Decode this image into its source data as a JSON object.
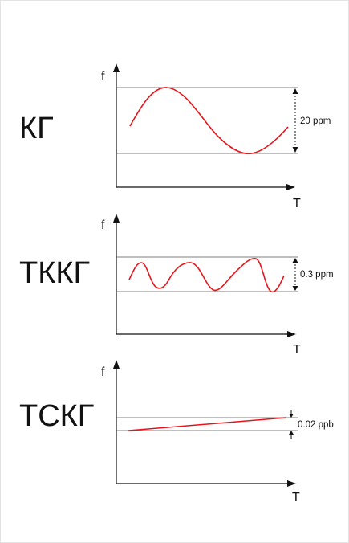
{
  "panels": [
    {
      "label": "КГ",
      "y_axis_label": "f",
      "x_axis_label": "T",
      "range_label": "20 ppm",
      "curve": "sine",
      "colors": {
        "curve": "#e8141b",
        "axis": "#111111",
        "ref": "#555555"
      }
    },
    {
      "label": "ТККГ",
      "y_axis_label": "f",
      "x_axis_label": "T",
      "range_label": "0.3 ppm",
      "curve": "wavy",
      "colors": {
        "curve": "#e8141b",
        "axis": "#111111",
        "ref": "#555555"
      }
    },
    {
      "label": "ТСКГ",
      "y_axis_label": "f",
      "x_axis_label": "T",
      "range_label": "0.02 ppb",
      "curve": "rising-line",
      "colors": {
        "curve": "#e8141b",
        "axis": "#111111",
        "ref": "#555555"
      }
    }
  ]
}
